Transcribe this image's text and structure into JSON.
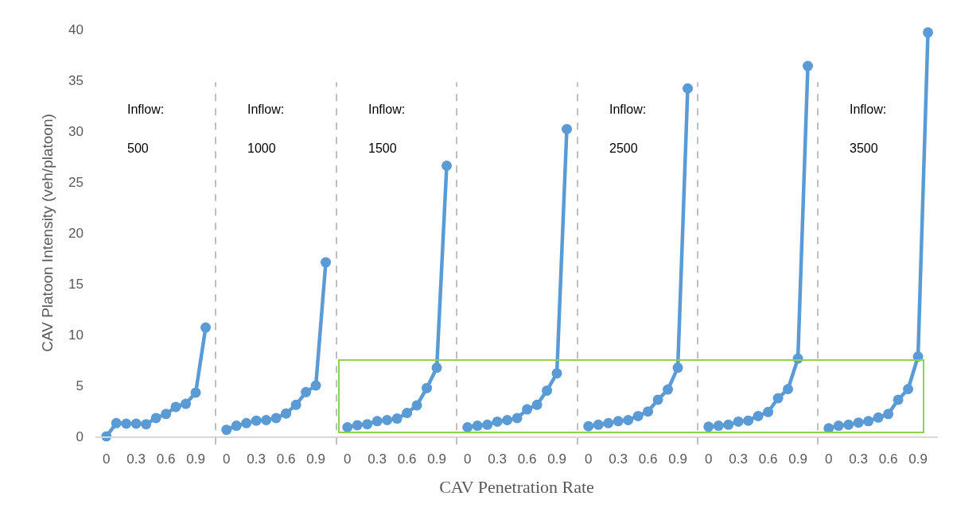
{
  "chart_data": [
    {
      "type": "line",
      "x": [
        0,
        0.1,
        0.2,
        0.3,
        0.4,
        0.5,
        0.6,
        0.7,
        0.8,
        0.9,
        1
      ],
      "series": [
        {
          "color": "#5b9bd5",
          "values": [
            0,
            1.3,
            1.25,
            1.25,
            1.2,
            1.8,
            2.2,
            2.9,
            3.2,
            4.3,
            10.7
          ]
        }
      ],
      "xlim": [
        -0.11,
        1.1
      ],
      "xticks": [
        0,
        0.3,
        0.6,
        0.9
      ],
      "ylim": [
        0,
        40
      ],
      "yticks": [
        0,
        5,
        10,
        15,
        20,
        25,
        30,
        35,
        40
      ],
      "ylabel": "CAV Platoon Intensity (veh/platoon)",
      "marker": "circle",
      "grid": false,
      "annotations": [
        "Inflow:",
        "500"
      ]
    },
    {
      "type": "line",
      "x": [
        0,
        0.1,
        0.2,
        0.3,
        0.4,
        0.5,
        0.6,
        0.7,
        0.8,
        0.9,
        1
      ],
      "series": [
        {
          "color": "#5b9bd5",
          "values": [
            0.65,
            1.05,
            1.3,
            1.55,
            1.6,
            1.8,
            2.25,
            3.1,
            4.35,
            5,
            17.1
          ]
        }
      ],
      "xlim": [
        -0.11,
        1.1
      ],
      "xticks": [
        0,
        0.3,
        0.6,
        0.9
      ],
      "ylim": [
        0,
        40
      ],
      "tick_labels": "x",
      "marker": "circle",
      "grid": false,
      "annotations": [
        "Inflow:",
        "1000"
      ]
    },
    {
      "type": "line",
      "x": [
        0,
        0.1,
        0.2,
        0.3,
        0.4,
        0.5,
        0.6,
        0.7,
        0.8,
        0.9,
        1
      ],
      "series": [
        {
          "color": "#5b9bd5",
          "values": [
            0.9,
            1.1,
            1.2,
            1.5,
            1.6,
            1.75,
            2.3,
            3.05,
            4.75,
            6.75,
            26.6
          ]
        }
      ],
      "xlim": [
        -0.11,
        1.1
      ],
      "xticks": [
        0,
        0.3,
        0.6,
        0.9
      ],
      "ylim": [
        0,
        40
      ],
      "tick_labels": "x",
      "marker": "circle",
      "grid": false,
      "annotations": [
        "Inflow:",
        "1500"
      ]
    },
    {
      "type": "line",
      "x": [
        0,
        0.1,
        0.2,
        0.3,
        0.4,
        0.5,
        0.6,
        0.7,
        0.8,
        0.9,
        1
      ],
      "series": [
        {
          "color": "#5b9bd5",
          "values": [
            0.9,
            1.05,
            1.15,
            1.45,
            1.6,
            1.8,
            2.65,
            3.1,
            4.5,
            6.2,
            30.2
          ]
        }
      ],
      "xlim": [
        -0.11,
        1.1
      ],
      "xticks": [
        0,
        0.3,
        0.6,
        0.9
      ],
      "ylim": [
        0,
        40
      ],
      "tick_labels": "x",
      "marker": "circle",
      "grid": false,
      "xlabel": "CAV Penetration Rate"
    },
    {
      "type": "line",
      "x": [
        0,
        0.1,
        0.2,
        0.3,
        0.4,
        0.5,
        0.6,
        0.7,
        0.8,
        0.9,
        1
      ],
      "series": [
        {
          "color": "#5b9bd5",
          "values": [
            1,
            1.15,
            1.3,
            1.5,
            1.6,
            2,
            2.45,
            3.6,
            4.6,
            6.75,
            34.2
          ]
        }
      ],
      "xlim": [
        -0.11,
        1.1
      ],
      "xticks": [
        0,
        0.3,
        0.6,
        0.9
      ],
      "ylim": [
        0,
        40
      ],
      "tick_labels": "x",
      "marker": "circle",
      "grid": false,
      "annotations": [
        "Inflow:",
        "2500"
      ]
    },
    {
      "type": "line",
      "x": [
        0,
        0.1,
        0.2,
        0.3,
        0.4,
        0.5,
        0.6,
        0.7,
        0.8,
        0.9,
        1
      ],
      "series": [
        {
          "color": "#5b9bd5",
          "values": [
            0.95,
            1.05,
            1.15,
            1.45,
            1.55,
            2,
            2.4,
            3.75,
            4.65,
            7.65,
            36.4
          ]
        }
      ],
      "xlim": [
        -0.11,
        1.1
      ],
      "xticks": [
        0,
        0.3,
        0.6,
        0.9
      ],
      "ylim": [
        0,
        40
      ],
      "tick_labels": "x",
      "marker": "circle",
      "grid": false
    },
    {
      "type": "line",
      "x": [
        0,
        0.1,
        0.2,
        0.3,
        0.4,
        0.5,
        0.6,
        0.7,
        0.8,
        0.9,
        1
      ],
      "series": [
        {
          "color": "#5b9bd5",
          "values": [
            0.8,
            1.05,
            1.15,
            1.35,
            1.5,
            1.85,
            2.2,
            3.6,
            4.65,
            7.85,
            39.7
          ]
        }
      ],
      "xlim": [
        -0.11,
        1.1
      ],
      "xticks": [
        0,
        0.3,
        0.6,
        0.9
      ],
      "ylim": [
        0,
        40
      ],
      "tick_labels": "x",
      "marker": "circle",
      "grid": false,
      "annotations": [
        "Inflow:",
        "3500"
      ]
    }
  ]
}
